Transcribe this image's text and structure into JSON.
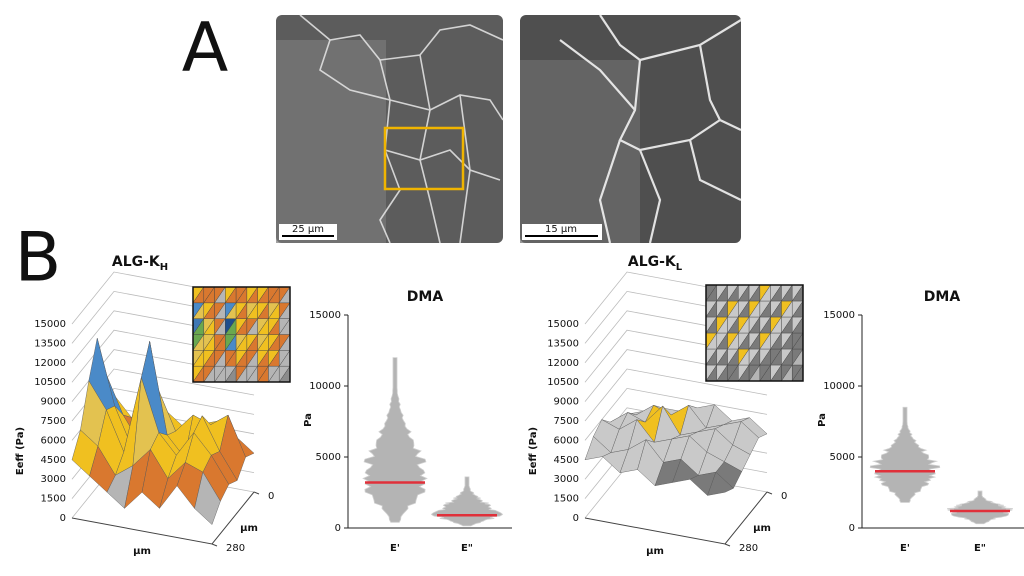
{
  "panel_labels": [
    "A",
    "B"
  ],
  "micrographs": [
    {
      "scale_bar": "25 μm"
    },
    {
      "scale_bar": "15 μm"
    }
  ],
  "chart_data": [
    {
      "type": "surface",
      "title": "ALG-K",
      "title_subscript": "H",
      "zlabel": "Eeff (Pa)",
      "xlabel": "μm",
      "ylabel": "μm",
      "zlim": [
        0,
        15000
      ],
      "zticks": [
        0,
        1500,
        3000,
        4500,
        6000,
        7500,
        9000,
        10500,
        12000,
        13500,
        15000
      ],
      "ylim": [
        0,
        280
      ],
      "yticks": [
        0,
        280
      ],
      "colors": [
        "#8c8c8c",
        "#b5b5b5",
        "#d9782f",
        "#f0c020",
        "#e3c250",
        "#4a8ac8",
        "#6aa84f",
        "#3f78b5",
        "#1f4e8c",
        "#1f4e8c"
      ],
      "z": [
        [
          4500,
          3500,
          2500,
          1500,
          3000,
          2000,
          4000,
          2500,
          1500
        ],
        [
          6000,
          5000,
          3000,
          4000,
          5500,
          3500,
          5000,
          4500,
          2500
        ],
        [
          9000,
          7000,
          4000,
          10000,
          6000,
          4500,
          6500,
          5000,
          3000
        ],
        [
          11500,
          6500,
          3500,
          12000,
          5000,
          3500,
          7000,
          4500,
          2500
        ],
        [
          8000,
          5000,
          3000,
          7500,
          4500,
          6000,
          5500,
          6500,
          3500
        ],
        [
          5500,
          4000,
          3500,
          5000,
          4000,
          4500,
          5000,
          4000,
          3000
        ]
      ]
    },
    {
      "type": "strip",
      "title": "DMA",
      "ylabel": "Pa",
      "categories": [
        "E'",
        "E\""
      ],
      "values": [
        3200,
        900
      ],
      "min": [
        400,
        150
      ],
      "max": [
        12000,
        3600
      ],
      "ylim": [
        0,
        15000
      ],
      "yticks": [
        0,
        5000,
        10000,
        15000
      ],
      "color": "#a8a8a8",
      "median_color": "#e0303a"
    },
    {
      "type": "surface",
      "title": "ALG-K",
      "title_subscript": "L",
      "zlabel": "Eeff (Pa)",
      "xlabel": "μm",
      "ylabel": "μm",
      "zlim": [
        0,
        15000
      ],
      "zticks": [
        0,
        1500,
        3000,
        4500,
        6000,
        7500,
        9000,
        10500,
        12000,
        13500,
        15000
      ],
      "ylim": [
        0,
        280
      ],
      "yticks": [
        0,
        280
      ],
      "colors": [
        "#8c8c8c",
        "#b5b5b5",
        "#7a7a7a",
        "#c9c9c9",
        "#f0c020",
        "#e0a820",
        "#4a8ac8",
        "#3f78b5",
        "#1f4e8c",
        "#1f4e8c"
      ],
      "z": [
        [
          4500,
          5000,
          4000,
          4500,
          3500,
          4000,
          4500,
          3500,
          4000
        ],
        [
          5500,
          4500,
          5000,
          6000,
          4500,
          5000,
          4000,
          4500,
          3500
        ],
        [
          6000,
          5500,
          6500,
          5000,
          5500,
          6000,
          5000,
          4500,
          4000
        ],
        [
          5000,
          6000,
          5500,
          7000,
          5000,
          5500,
          6000,
          5000,
          4500
        ],
        [
          4500,
          5000,
          6000,
          5500,
          6500,
          5000,
          5500,
          6000,
          5000
        ],
        [
          4000,
          4500,
          5000,
          5000,
          5500,
          6000,
          5000,
          5500,
          4500
        ]
      ]
    },
    {
      "type": "strip",
      "title": "DMA",
      "ylabel": "Pa",
      "categories": [
        "E'",
        "E\""
      ],
      "values": [
        4000,
        1200
      ],
      "min": [
        1800,
        300
      ],
      "max": [
        8500,
        2600
      ],
      "ylim": [
        0,
        15000
      ],
      "yticks": [
        0,
        5000,
        10000,
        15000
      ],
      "color": "#a8a8a8",
      "median_color": "#e0303a"
    }
  ]
}
